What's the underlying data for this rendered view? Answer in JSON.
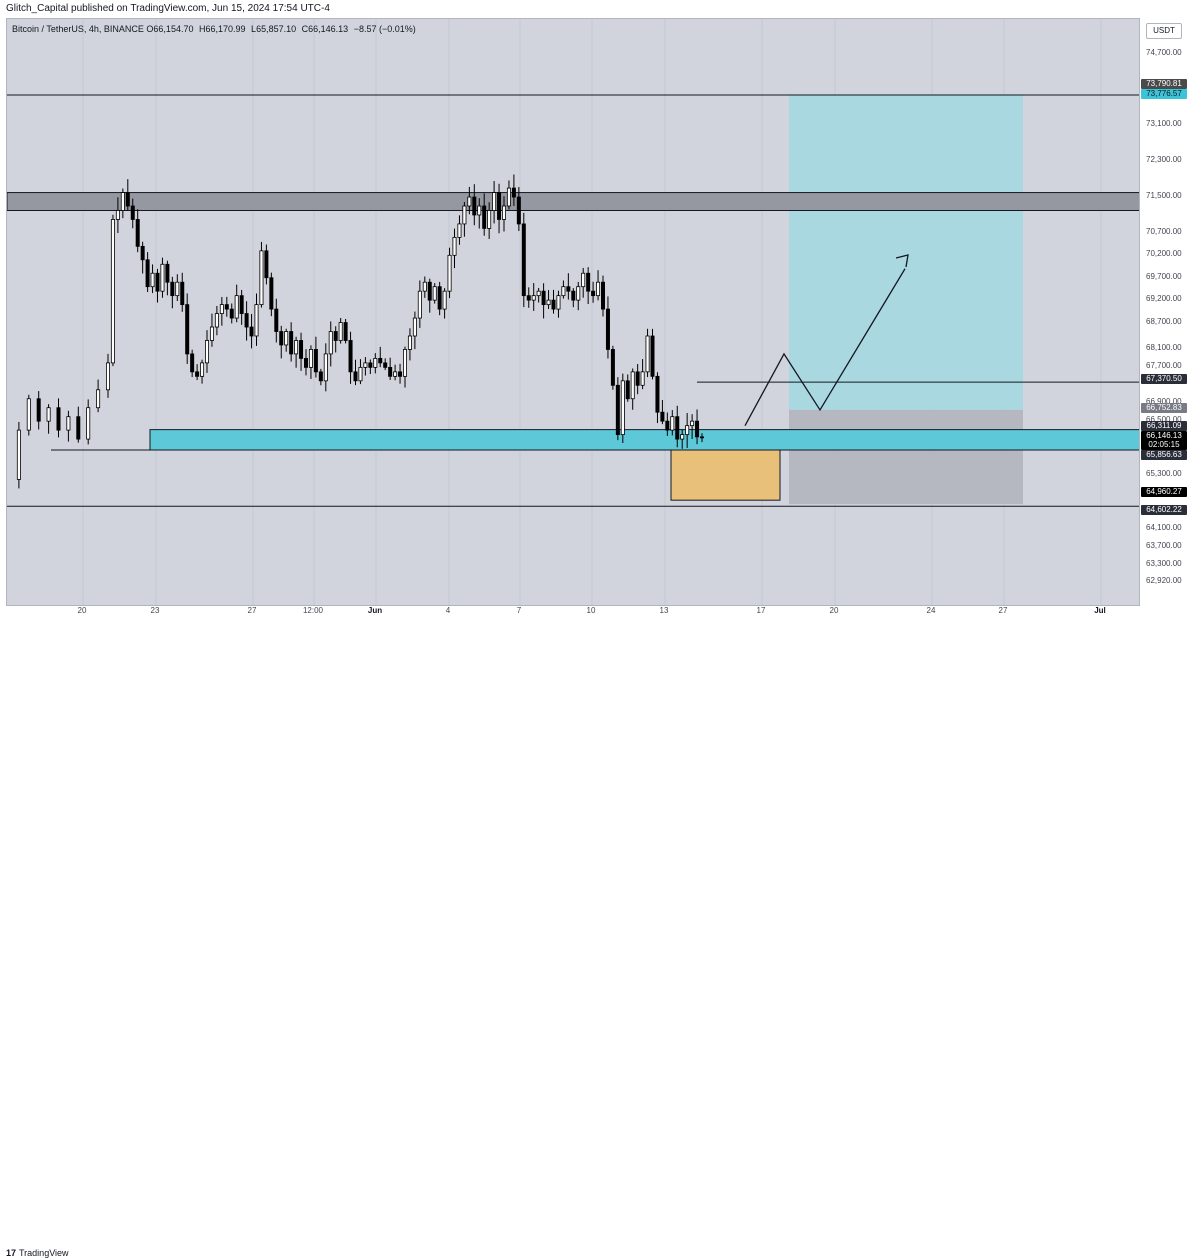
{
  "header": {
    "publisher": "Glitch_Capital published on TradingView.com, Jun 15, 2024 17:54 UTC-4"
  },
  "legend": {
    "symbol": "Bitcoin / TetherUS, 4h, BINANCE",
    "open_label": "O",
    "open": "66,154.70",
    "high_label": "H",
    "high": "66,170.99",
    "low_label": "L",
    "low": "65,857.10",
    "close_label": "C",
    "close": "66,146.13",
    "change": "−8.57 (−0.01%)"
  },
  "currency_button": "USDT",
  "footer": {
    "logo_glyph": "17",
    "brand": "TradingView"
  },
  "colors": {
    "background": "#d1d4dc",
    "up_candle": "#ffffff",
    "down_candle": "#000000",
    "demand_zone": "#5dc8d8",
    "resistance_zone": "#9598a1",
    "target_zone": "#a8d8e0",
    "stop_zone": "#b2b5be",
    "entry_box": "#e8c07a"
  },
  "chart_data": {
    "type": "candlestick",
    "timeframe": "4h",
    "x_tick_labels": [
      "20",
      "23",
      "27",
      "12:00",
      "Jun",
      "4",
      "7",
      "10",
      "13",
      "17",
      "20",
      "24",
      "27",
      "Jul"
    ],
    "y_tick_labels": [
      "74,700.00",
      "73,100.00",
      "72,300.00",
      "71,500.00",
      "70,700.00",
      "70,200.00",
      "69,700.00",
      "69,200.00",
      "68,700.00",
      "68,100.00",
      "67,700.00",
      "66,900.00",
      "66,500.00",
      "65,300.00",
      "64,100.00",
      "63,700.00",
      "63,300.00",
      "62,920.00"
    ],
    "ylim": [
      62700,
      75500
    ],
    "price_path": [
      [
        0,
        65200
      ],
      [
        2,
        66300
      ],
      [
        4,
        67000
      ],
      [
        6,
        66500
      ],
      [
        8,
        66800
      ],
      [
        10,
        66300
      ],
      [
        12,
        66600
      ],
      [
        14,
        66100
      ],
      [
        16,
        66800
      ],
      [
        18,
        67200
      ],
      [
        20,
        67800
      ],
      [
        21,
        71000
      ],
      [
        22,
        71200
      ],
      [
        23,
        71600
      ],
      [
        24,
        71300
      ],
      [
        25,
        71000
      ],
      [
        26,
        70400
      ],
      [
        27,
        70100
      ],
      [
        28,
        69500
      ],
      [
        29,
        69800
      ],
      [
        30,
        69400
      ],
      [
        31,
        70000
      ],
      [
        32,
        69600
      ],
      [
        33,
        69300
      ],
      [
        34,
        69600
      ],
      [
        35,
        69100
      ],
      [
        36,
        68000
      ],
      [
        37,
        67600
      ],
      [
        38,
        67500
      ],
      [
        39,
        67800
      ],
      [
        40,
        68300
      ],
      [
        41,
        68600
      ],
      [
        42,
        68900
      ],
      [
        43,
        69100
      ],
      [
        44,
        69000
      ],
      [
        45,
        68800
      ],
      [
        46,
        69300
      ],
      [
        47,
        68900
      ],
      [
        48,
        68600
      ],
      [
        49,
        68400
      ],
      [
        50,
        69100
      ],
      [
        51,
        70300
      ],
      [
        52,
        69700
      ],
      [
        53,
        69000
      ],
      [
        54,
        68500
      ],
      [
        55,
        68200
      ],
      [
        56,
        68500
      ],
      [
        57,
        68000
      ],
      [
        58,
        68300
      ],
      [
        59,
        67900
      ],
      [
        60,
        67700
      ],
      [
        61,
        68100
      ],
      [
        62,
        67600
      ],
      [
        63,
        67400
      ],
      [
        64,
        68000
      ],
      [
        65,
        68500
      ],
      [
        66,
        68300
      ],
      [
        67,
        68700
      ],
      [
        68,
        68300
      ],
      [
        69,
        67600
      ],
      [
        70,
        67400
      ],
      [
        71,
        67700
      ],
      [
        72,
        67800
      ],
      [
        73,
        67700
      ],
      [
        74,
        67900
      ],
      [
        75,
        67800
      ],
      [
        76,
        67700
      ],
      [
        77,
        67500
      ],
      [
        78,
        67600
      ],
      [
        79,
        67500
      ],
      [
        80,
        68100
      ],
      [
        81,
        68400
      ],
      [
        82,
        68800
      ],
      [
        83,
        69400
      ],
      [
        84,
        69600
      ],
      [
        85,
        69200
      ],
      [
        86,
        69500
      ],
      [
        87,
        69000
      ],
      [
        88,
        69400
      ],
      [
        89,
        70200
      ],
      [
        90,
        70600
      ],
      [
        91,
        70900
      ],
      [
        92,
        71300
      ],
      [
        93,
        71500
      ],
      [
        94,
        71100
      ],
      [
        95,
        71300
      ],
      [
        96,
        70800
      ],
      [
        97,
        71200
      ],
      [
        98,
        71600
      ],
      [
        99,
        71000
      ],
      [
        100,
        71300
      ],
      [
        101,
        71700
      ],
      [
        102,
        71500
      ],
      [
        103,
        70900
      ],
      [
        104,
        69300
      ],
      [
        105,
        69200
      ],
      [
        106,
        69300
      ],
      [
        107,
        69400
      ],
      [
        108,
        69100
      ],
      [
        109,
        69200
      ],
      [
        110,
        69000
      ],
      [
        111,
        69300
      ],
      [
        112,
        69500
      ],
      [
        113,
        69400
      ],
      [
        114,
        69200
      ],
      [
        115,
        69500
      ],
      [
        116,
        69800
      ],
      [
        117,
        69400
      ],
      [
        118,
        69300
      ],
      [
        119,
        69600
      ],
      [
        120,
        69000
      ],
      [
        121,
        68100
      ],
      [
        122,
        67300
      ],
      [
        123,
        66200
      ],
      [
        124,
        67400
      ],
      [
        125,
        67000
      ],
      [
        126,
        67600
      ],
      [
        127,
        67300
      ],
      [
        128,
        67600
      ],
      [
        129,
        68400
      ],
      [
        130,
        67500
      ],
      [
        131,
        66700
      ],
      [
        132,
        66500
      ],
      [
        133,
        66300
      ],
      [
        134,
        66600
      ],
      [
        135,
        66100
      ],
      [
        136,
        66200
      ],
      [
        137,
        66400
      ],
      [
        138,
        66500
      ],
      [
        139,
        66150
      ],
      [
        140,
        66146
      ]
    ],
    "horizontal_levels": [
      {
        "price": 73776.57,
        "label": "73,776.57"
      },
      {
        "price": 67370.5,
        "label": "67,370.50"
      },
      {
        "price": 65856.63,
        "label": "65,856.63"
      },
      {
        "price": 64602.22,
        "label": "64,602.22"
      }
    ],
    "zones": {
      "resistance": [
        71200,
        71600
      ],
      "demand": [
        65856.63,
        66311.09
      ],
      "entry_box": [
        64960.27,
        65856.63
      ],
      "long_position": {
        "target": 73790.81,
        "entry": 66752.83,
        "stop": 64960.27
      }
    },
    "projected_path": [
      [
        141,
        66300
      ],
      [
        149,
        68000
      ],
      [
        155,
        66800
      ],
      [
        172,
        69900
      ]
    ],
    "price_tags": [
      {
        "label": "73,790.81",
        "price": 73790.81,
        "color": "#4a4a4a"
      },
      {
        "label": "73,776.57",
        "price": 73776.57,
        "color": "#3bc4d8"
      },
      {
        "label": "67,370.50",
        "price": 67370.5,
        "color": "#2a2e39"
      },
      {
        "label": "66,752.83",
        "price": 66752.83,
        "color": "#787b86"
      },
      {
        "label": "66,311.09",
        "price": 66311.09,
        "color": "#2a2e39"
      },
      {
        "label": "66,146.13",
        "price": 66146.13,
        "color": "#000000"
      },
      {
        "label": "02:05:15",
        "price": 66000,
        "color": "#000000"
      },
      {
        "label": "65,856.63",
        "price": 65856.63,
        "color": "#2a2e39"
      },
      {
        "label": "64,960.27",
        "price": 64960.27,
        "color": "#000000"
      },
      {
        "label": "64,602.22",
        "price": 64602.22,
        "color": "#2a2e39"
      }
    ]
  }
}
